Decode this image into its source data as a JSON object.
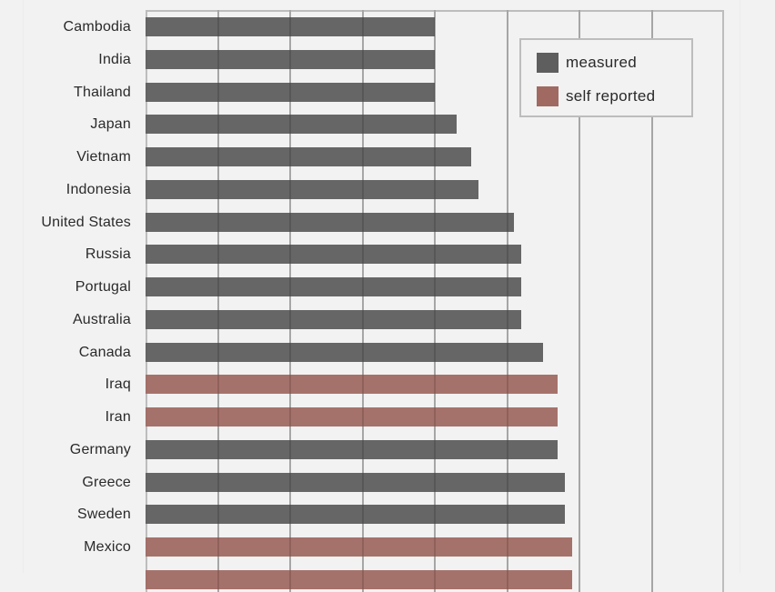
{
  "chart_data": {
    "type": "bar",
    "orientation": "horizontal",
    "title": "",
    "xlabel": "",
    "ylabel": "",
    "grid": true,
    "xlim": [
      0,
      8
    ],
    "x_gridlines": [
      0,
      1,
      2,
      3,
      4,
      5,
      6,
      7,
      8
    ],
    "tick_labels_visible": false,
    "value_units": "relative (1 unit = 1 gridline spacing; axis labels not visible)",
    "categories": [
      "Cambodia",
      "India",
      "Thailand",
      "Japan",
      "Vietnam",
      "Indonesia",
      "United States",
      "Russia",
      "Portugal",
      "Australia",
      "Canada",
      "Iraq",
      "Iran",
      "Germany",
      "Greece",
      "Sweden",
      "Mexico",
      ""
    ],
    "values": [
      4.0,
      4.0,
      4.0,
      4.3,
      4.5,
      4.6,
      5.1,
      5.2,
      5.2,
      5.2,
      5.5,
      5.7,
      5.7,
      5.7,
      5.8,
      5.8,
      5.9,
      5.9
    ],
    "types": [
      "measured",
      "measured",
      "measured",
      "measured",
      "measured",
      "measured",
      "measured",
      "measured",
      "measured",
      "measured",
      "measured",
      "self reported",
      "self reported",
      "measured",
      "measured",
      "measured",
      "self reported",
      "self reported"
    ],
    "series": [
      {
        "name": "measured",
        "color": "#5e5e5e"
      },
      {
        "name": "self reported",
        "color": "#a06a63"
      }
    ],
    "legend": {
      "position": "upper right",
      "entries": [
        "measured",
        "self reported"
      ]
    },
    "note": "Last bar is cut off at bottom edge; its label is not visible."
  },
  "legend": {
    "items": [
      {
        "label": "measured",
        "color": "#5e5e5e"
      },
      {
        "label": "self reported",
        "color": "#a06a63"
      }
    ]
  }
}
